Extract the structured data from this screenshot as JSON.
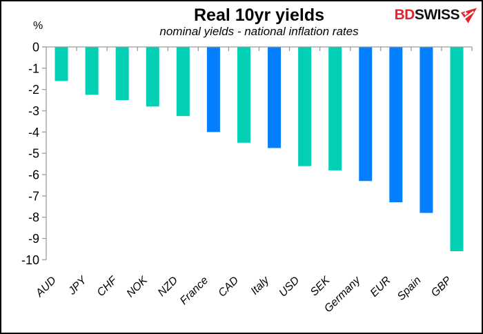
{
  "header": {
    "title": "Real 10yr yields",
    "subtitle": "nominal yields - national inflation rates",
    "logo": {
      "part1": "BD",
      "part2": "SWISS",
      "icon": "red-pennant-arrow-with-swiss-cross"
    }
  },
  "chart_data": {
    "type": "bar",
    "title": "Real 10yr yields",
    "subtitle": "nominal yields - national inflation rates",
    "xlabel": "",
    "ylabel": "%",
    "ylim": [
      -10,
      0
    ],
    "ytick_labels": [
      "0",
      "-1",
      "-2",
      "-3",
      "-4",
      "-5",
      "-6",
      "-7",
      "-8",
      "-9",
      "-10"
    ],
    "grid": false,
    "legend": false,
    "categories": [
      "AUD",
      "JPY",
      "CHF",
      "NOK",
      "NZD",
      "France",
      "CAD",
      "Italy",
      "USD",
      "SEK",
      "Germany",
      "EUR",
      "Spain",
      "GBP"
    ],
    "values": [
      -1.6,
      -2.25,
      -2.5,
      -2.8,
      -3.25,
      -4.0,
      -4.5,
      -4.75,
      -5.6,
      -5.8,
      -6.3,
      -7.3,
      -7.8,
      -9.6
    ],
    "bar_color_keys": [
      "teal",
      "teal",
      "teal",
      "teal",
      "teal",
      "blue",
      "teal",
      "blue",
      "teal",
      "teal",
      "blue",
      "blue",
      "blue",
      "teal"
    ]
  },
  "colors": {
    "bar_teal": "#03CFB5",
    "bar_blue": "#0480FE",
    "axis_gray": "#9B9B9B",
    "brand_red": "#E2242B",
    "text_black": "#000000"
  }
}
